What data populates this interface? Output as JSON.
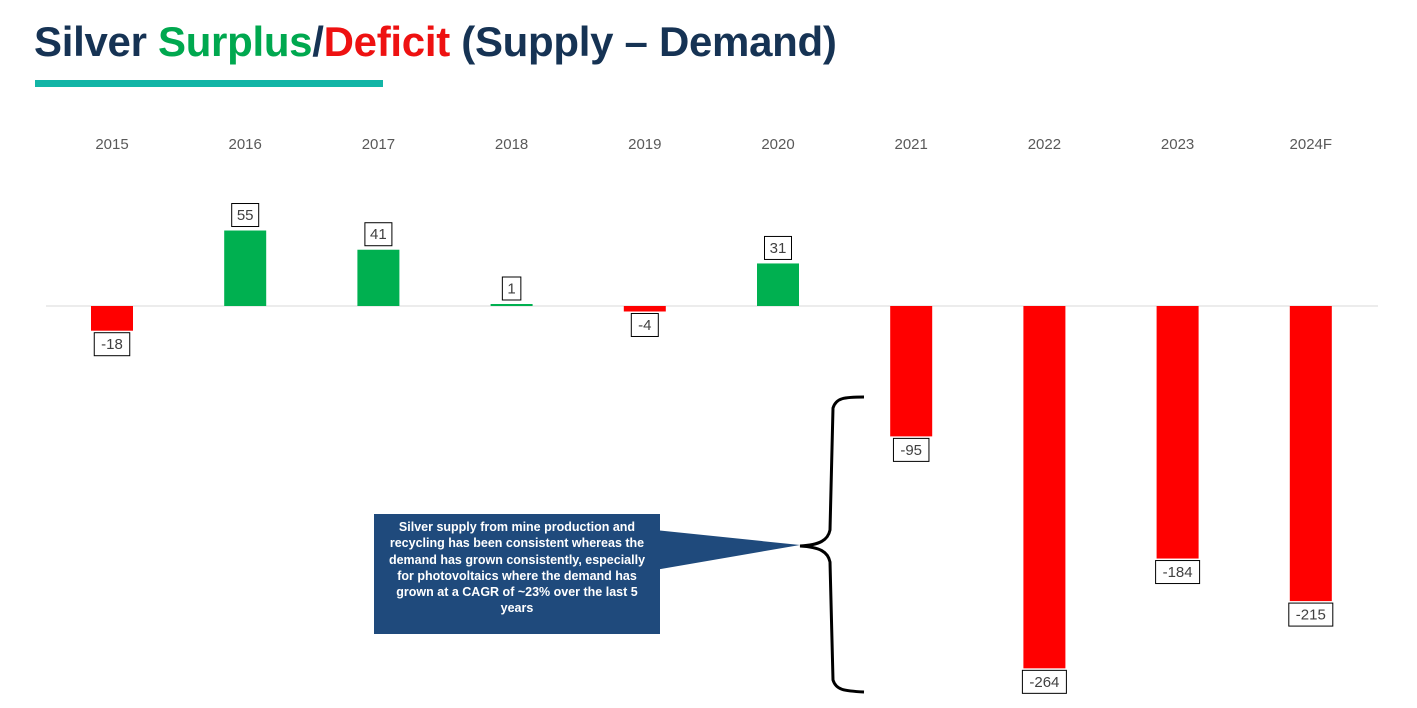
{
  "title": {
    "part1": "Silver ",
    "surplus": "Surplus",
    "slash": "/",
    "deficit": "Deficit",
    "part2": " (Supply – Demand)"
  },
  "colors": {
    "title": "#163354",
    "surplus": "#00b050",
    "deficit": "#ff0000",
    "accent_rule": "#12b5a6",
    "callout_bg": "#1f4a7c"
  },
  "chart_data": {
    "type": "bar",
    "title": "Silver Surplus/Deficit (Supply – Demand)",
    "xlabel": "",
    "ylabel": "",
    "categories": [
      "2015",
      "2016",
      "2017",
      "2018",
      "2019",
      "2020",
      "2021",
      "2022",
      "2023",
      "2024F"
    ],
    "values": [
      -18,
      55,
      41,
      1,
      -4,
      31,
      -95,
      -264,
      -184,
      -215
    ],
    "ylim": [
      -264,
      55
    ],
    "grid": false,
    "legend": "none"
  },
  "callout": {
    "text": "Silver supply from mine production and recycling has been consistent whereas the demand has grown consistently, especially for photovoltaics where the demand has grown at a CAGR of ~23% over the last 5 years"
  }
}
